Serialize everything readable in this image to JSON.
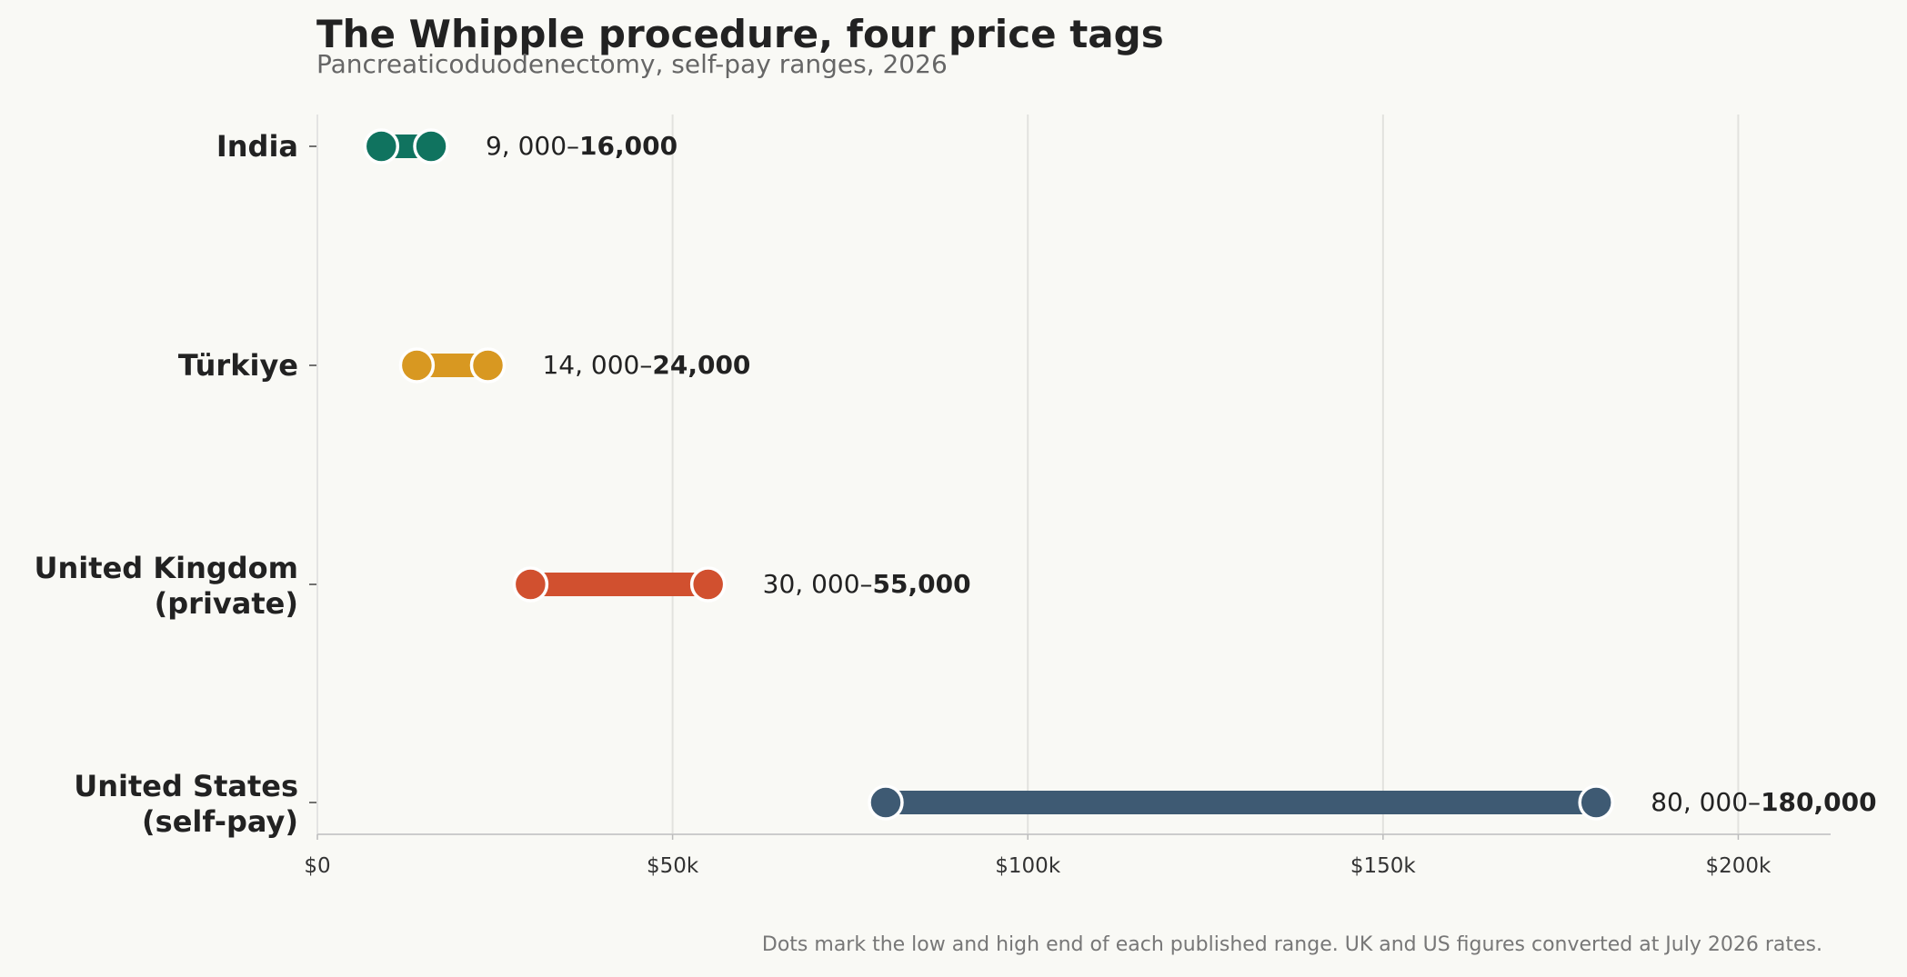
{
  "chart_data": {
    "type": "dumbbell",
    "title": "The Whipple procedure, four price tags",
    "subtitle": "Pancreaticoduodenectomy, self-pay ranges, 2026",
    "xlabel": "",
    "ylabel": "",
    "xlim": [
      0,
      213000
    ],
    "x_ticks": [
      0,
      50000,
      100000,
      150000,
      200000
    ],
    "x_tick_labels": [
      "$0",
      "$50k",
      "$100k",
      "$150k",
      "$200k"
    ],
    "grid": "vertical",
    "categories": [
      [
        "India"
      ],
      [
        "Türkiye"
      ],
      [
        "United Kingdom",
        "(private)"
      ],
      [
        "United States",
        "(self-pay)"
      ]
    ],
    "low": [
      9000,
      14000,
      30000,
      80000
    ],
    "high": [
      16000,
      24000,
      55000,
      180000
    ],
    "range_labels": [
      {
        "low": "9, 000–",
        "high": "16,000"
      },
      {
        "low": "14, 000–",
        "high": "24,000"
      },
      {
        "low": "30, 000–",
        "high": "55,000"
      },
      {
        "low": "80, 000–",
        "high": "180,000"
      }
    ],
    "colors": [
      "#10735f",
      "#d89821",
      "#d1502f",
      "#3e5a73"
    ],
    "footnote": "Dots mark the low and high end of each published range. UK and US figures converted at July 2026 rates."
  }
}
